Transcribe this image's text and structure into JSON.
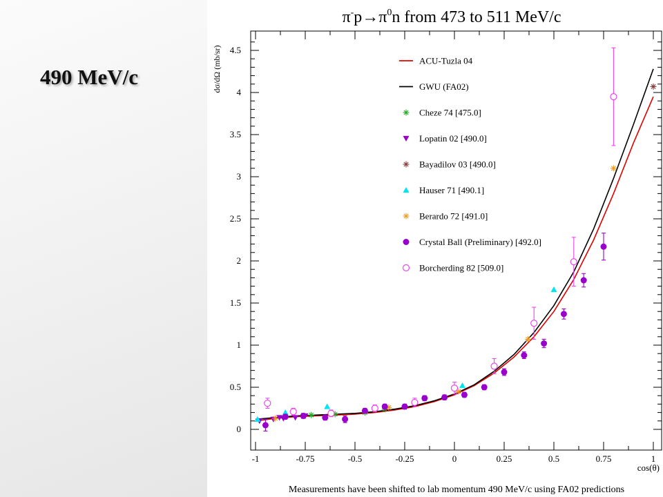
{
  "slide": {
    "title": "490 MeV/c"
  },
  "chart_data": {
    "type": "scatter",
    "title_parts": {
      "pi": "π",
      "minus": "-",
      "p": "p",
      "arrow": "→",
      "pi0": "π",
      "zero": "0",
      "rest": "n from 473 to 511 MeV/c"
    },
    "xlabel": "cos(θ)",
    "ylabel": "dσ/dΩ (mb/sr)",
    "caption": "Measurements have been shifted to lab momentum 490 MeV/c using FA02 predictions",
    "xlim": [
      -1,
      1
    ],
    "ylim": [
      -0.2,
      4.65
    ],
    "xticks": [
      -1,
      -0.75,
      -0.5,
      -0.25,
      0,
      0.25,
      0.5,
      0.75,
      1
    ],
    "xtick_labels": [
      "-1",
      "-0.75",
      "-0.5",
      "-0.25",
      "0",
      "0.25",
      "0.5",
      "0.75",
      "1"
    ],
    "yticks": [
      0,
      0.5,
      1,
      1.5,
      2,
      2.5,
      3,
      3.5,
      4,
      4.5
    ],
    "ytick_labels": [
      "0",
      "0.5",
      "1",
      "1.5",
      "2",
      "2.5",
      "3",
      "3.5",
      "4",
      "4.5"
    ],
    "legend_position": "top-center",
    "curves": [
      {
        "name": "ACU-Tuzla 04",
        "color": "#e00000",
        "x": [
          -1,
          -0.9,
          -0.8,
          -0.7,
          -0.6,
          -0.5,
          -0.4,
          -0.3,
          -0.2,
          -0.1,
          0,
          0.1,
          0.2,
          0.3,
          0.4,
          0.5,
          0.6,
          0.7,
          0.8,
          0.9,
          1.0
        ],
        "y": [
          0.1,
          0.13,
          0.15,
          0.16,
          0.17,
          0.18,
          0.2,
          0.23,
          0.27,
          0.33,
          0.41,
          0.52,
          0.67,
          0.86,
          1.1,
          1.4,
          1.78,
          2.25,
          2.8,
          3.4,
          3.95
        ]
      },
      {
        "name": "GWU (FA02)",
        "color": "#000000",
        "x": [
          -1,
          -0.9,
          -0.8,
          -0.7,
          -0.6,
          -0.5,
          -0.4,
          -0.3,
          -0.2,
          -0.1,
          0,
          0.1,
          0.2,
          0.3,
          0.4,
          0.5,
          0.6,
          0.7,
          0.8,
          0.9,
          1.0
        ],
        "y": [
          0.12,
          0.14,
          0.16,
          0.17,
          0.18,
          0.19,
          0.21,
          0.24,
          0.28,
          0.34,
          0.42,
          0.53,
          0.69,
          0.89,
          1.15,
          1.47,
          1.87,
          2.38,
          2.98,
          3.62,
          4.28
        ]
      }
    ],
    "series": [
      {
        "name": "Cheze 74  [475.0]",
        "color": "#22aa22",
        "marker": "star",
        "points": [
          [
            -0.72,
            0.17
          ],
          [
            -0.6,
            0.18
          ],
          [
            -0.45,
            0.2
          ],
          [
            -0.35,
            0.24
          ]
        ]
      },
      {
        "name": "Lopatin 02  [490.0]",
        "color": "#9900cc",
        "marker": "triangle-down",
        "points": [
          [
            -0.98,
            0.1
          ],
          [
            -0.91,
            0.12
          ],
          [
            -0.88,
            0.14
          ],
          [
            -0.86,
            0.13
          ],
          [
            -0.8,
            0.14
          ],
          [
            -0.75,
            0.16
          ]
        ]
      },
      {
        "name": "Bayadilov 03  [490.0]",
        "color": "#8b3a3a",
        "marker": "star",
        "points": [
          [
            1.0,
            4.07
          ]
        ]
      },
      {
        "name": "Hauser 71  [490.1]",
        "color": "#00e5ee",
        "marker": "triangle",
        "points": [
          [
            -0.99,
            0.12
          ],
          [
            -0.85,
            0.2
          ],
          [
            -0.64,
            0.27
          ],
          [
            0.04,
            0.52
          ],
          [
            0.5,
            1.66
          ]
        ]
      },
      {
        "name": "Berardo 72  [491.0]",
        "color": "#ee9a22",
        "marker": "star",
        "points": [
          [
            -0.9,
            0.13
          ],
          [
            -0.33,
            0.26
          ],
          [
            0.02,
            0.45
          ],
          [
            0.37,
            1.07
          ],
          [
            0.8,
            3.1
          ]
        ]
      },
      {
        "name": "Crystal Ball (Preliminary)  [492.0]",
        "color": "#9900cc",
        "marker": "circle-filled",
        "points": [
          [
            -0.95,
            0.05
          ],
          [
            -0.85,
            0.15
          ],
          [
            -0.76,
            0.16
          ],
          [
            -0.65,
            0.14
          ],
          [
            -0.55,
            0.12
          ],
          [
            -0.45,
            0.22
          ],
          [
            -0.35,
            0.27
          ],
          [
            -0.25,
            0.27
          ],
          [
            -0.15,
            0.37
          ],
          [
            -0.05,
            0.38
          ],
          [
            0.05,
            0.41
          ],
          [
            0.15,
            0.5
          ],
          [
            0.25,
            0.68
          ],
          [
            0.35,
            0.88
          ],
          [
            0.45,
            1.02
          ],
          [
            0.55,
            1.37
          ],
          [
            0.65,
            1.77
          ],
          [
            0.75,
            2.17
          ]
        ],
        "errors": [
          0.07,
          0.03,
          0.03,
          0.03,
          0.04,
          0.03,
          0.03,
          0.03,
          0.03,
          0.03,
          0.03,
          0.03,
          0.04,
          0.04,
          0.05,
          0.06,
          0.08,
          0.16
        ]
      },
      {
        "name": "Borcherding 82  [509.0]",
        "color": "#ee44ee",
        "marker": "circle-open",
        "points": [
          [
            -0.94,
            0.31
          ],
          [
            -0.81,
            0.21
          ],
          [
            -0.62,
            0.19
          ],
          [
            -0.4,
            0.25
          ],
          [
            -0.2,
            0.32
          ],
          [
            0.0,
            0.49
          ],
          [
            0.2,
            0.75
          ],
          [
            0.4,
            1.26
          ],
          [
            0.6,
            1.99
          ],
          [
            0.8,
            3.95
          ]
        ],
        "errors": [
          0.06,
          0.04,
          0.04,
          0.04,
          0.05,
          0.07,
          0.09,
          0.19,
          0.29,
          0.58
        ]
      }
    ]
  }
}
